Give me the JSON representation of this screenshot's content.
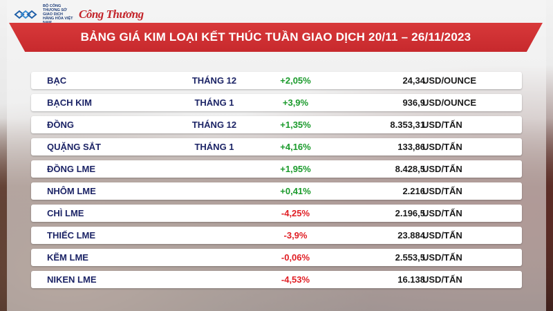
{
  "header": {
    "logo_text": "BỘ CÔNG THƯƠNG SỞ GIAO DỊCH HÀNG HÓA VIỆT NAM",
    "brand": "Công Thương",
    "title": "BẢNG GIÁ KIM LOẠI KẾT THÚC TUẦN GIAO DỊCH 20/11 – 26/11/2023"
  },
  "colors": {
    "positive": "#1a9a2b",
    "negative": "#e01e24",
    "title_bar": "#c7292d"
  },
  "table": {
    "rows": [
      {
        "name": "BẠC",
        "month": "THÁNG 12",
        "change": "+2,05%",
        "value": "24,34",
        "unit": "USD/OUNCE",
        "direction": "up"
      },
      {
        "name": "BẠCH KIM",
        "month": "THÁNG 1",
        "change": "+3,9%",
        "value": "936,9",
        "unit": "USD/OUNCE",
        "direction": "up"
      },
      {
        "name": "ĐỒNG",
        "month": "THÁNG 12",
        "change": "+1,35%",
        "value": "8.353,31",
        "unit": "USD/TẤN",
        "direction": "up"
      },
      {
        "name": "QUẶNG SẮT",
        "month": "THÁNG 1",
        "change": "+4,16%",
        "value": "133,86",
        "unit": "USD/TẤN",
        "direction": "up"
      },
      {
        "name": "ĐỒNG LME",
        "month": "",
        "change": "+1,95%",
        "value": "8.428,5",
        "unit": "USD/TẤN",
        "direction": "up"
      },
      {
        "name": "NHÔM LME",
        "month": "",
        "change": "+0,41%",
        "value": "2.216",
        "unit": "USD/TẤN",
        "direction": "up"
      },
      {
        "name": "CHÌ LME",
        "month": "",
        "change": "-4,25%",
        "value": "2.196,5",
        "unit": "USD/TẤN",
        "direction": "down"
      },
      {
        "name": "THIẾC LME",
        "month": "",
        "change": "-3,9%",
        "value": "23.884",
        "unit": "USD/TẤN",
        "direction": "down"
      },
      {
        "name": "KẼM LME",
        "month": "",
        "change": "-0,06%",
        "value": "2.553,5",
        "unit": "USD/TẤN",
        "direction": "down"
      },
      {
        "name": "NIKEN LME",
        "month": "",
        "change": "-4,53%",
        "value": "16.138",
        "unit": "USD/TẤN",
        "direction": "down"
      }
    ]
  }
}
